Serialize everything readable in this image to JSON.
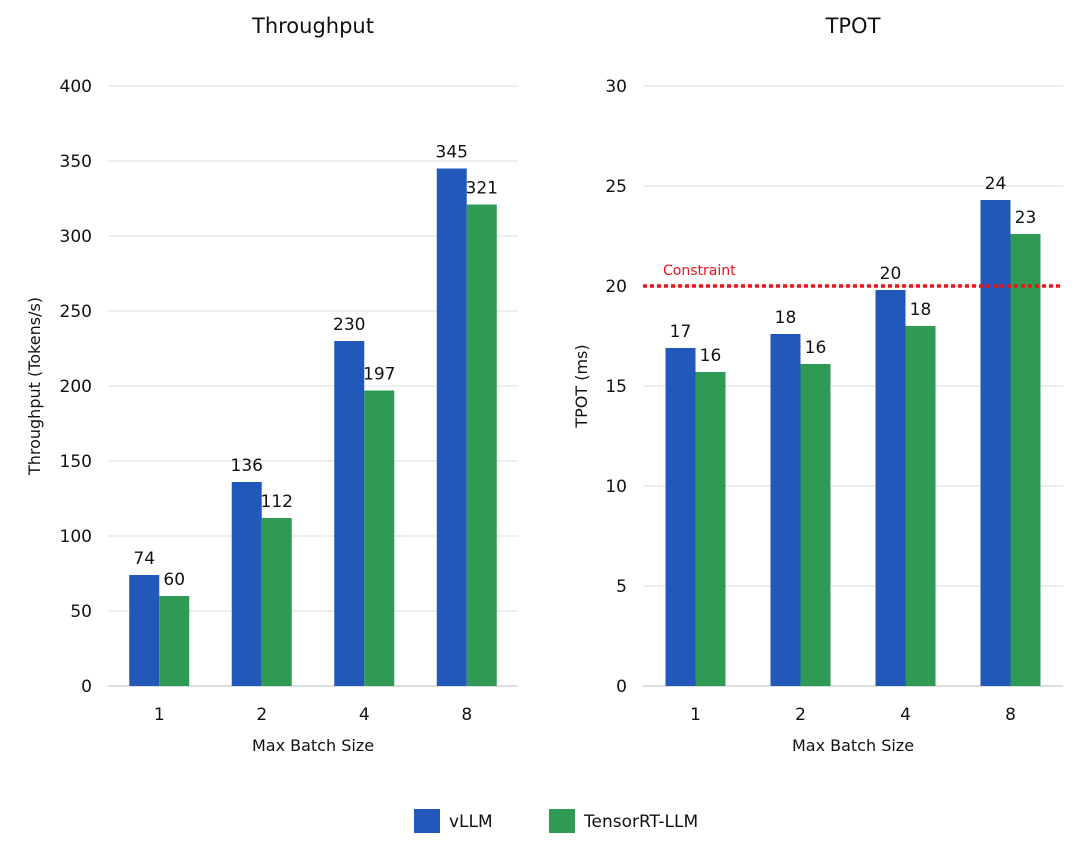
{
  "chart_data": [
    {
      "type": "bar",
      "title": "Throughput",
      "xlabel": "Max Batch Size",
      "ylabel": "Throughput (Tokens/s)",
      "categories": [
        "1",
        "2",
        "4",
        "8"
      ],
      "ylim": [
        0,
        400
      ],
      "yticks": [
        0,
        50,
        100,
        150,
        200,
        250,
        300,
        350,
        400
      ],
      "grid": true,
      "series": [
        {
          "name": "vLLM",
          "values": [
            74,
            136,
            230,
            345
          ]
        },
        {
          "name": "TensorRT-LLM",
          "values": [
            60,
            112,
            197,
            321
          ]
        }
      ],
      "data_labels": true
    },
    {
      "type": "bar",
      "title": "TPOT",
      "xlabel": "Max Batch Size",
      "ylabel": "TPOT (ms)",
      "categories": [
        "1",
        "2",
        "4",
        "8"
      ],
      "ylim": [
        0,
        30
      ],
      "yticks": [
        0,
        5,
        10,
        15,
        20,
        25,
        30
      ],
      "grid": true,
      "series": [
        {
          "name": "vLLM",
          "values": [
            16.9,
            17.6,
            19.8,
            24.3
          ],
          "labels": [
            "17",
            "18",
            "20",
            "24"
          ]
        },
        {
          "name": "TensorRT-LLM",
          "values": [
            15.7,
            16.1,
            18.0,
            22.6
          ],
          "labels": [
            "16",
            "16",
            "18",
            "23"
          ]
        }
      ],
      "data_labels": true,
      "reference_line": {
        "value": 20,
        "label": "Constraint",
        "color": "#e8151b",
        "style": "dotted"
      }
    }
  ],
  "legend": {
    "position": "bottom-center",
    "items": [
      {
        "name": "vLLM",
        "color": "#2158ba"
      },
      {
        "name": "TensorRT-LLM",
        "color": "#2e9a54"
      }
    ]
  },
  "colors": {
    "vllm": "#2158ba",
    "tensorrt": "#2e9a54",
    "constraint": "#e8151b"
  }
}
